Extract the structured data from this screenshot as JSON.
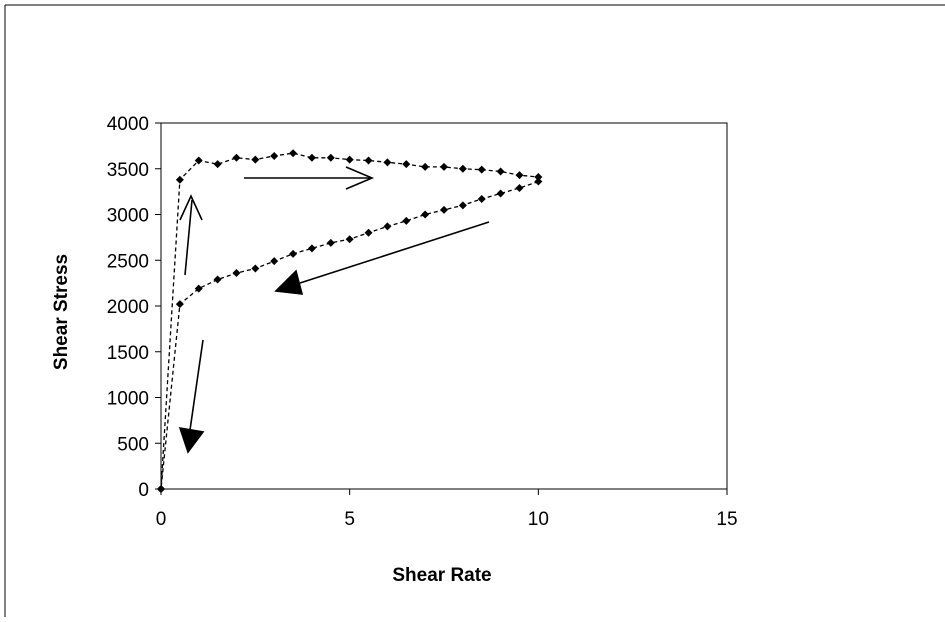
{
  "chart_data": {
    "type": "scatter",
    "title": "",
    "xlabel": "Shear Rate",
    "ylabel": "Shear Stress",
    "xlim": [
      0,
      15
    ],
    "ylim": [
      0,
      4000
    ],
    "x_ticks": [
      "0",
      "5",
      "10",
      "15"
    ],
    "y_ticks": [
      "0",
      "500",
      "1000",
      "1500",
      "2000",
      "2500",
      "3000",
      "3500",
      "4000"
    ],
    "grid": false,
    "legend": "none",
    "series": [
      {
        "values_upper": [
          [
            0,
            0
          ],
          [
            0.5,
            3380
          ],
          [
            1,
            3590
          ],
          [
            1.5,
            3550
          ],
          [
            2,
            3620
          ],
          [
            2.5,
            3600
          ],
          [
            3,
            3640
          ],
          [
            3.5,
            3670
          ],
          [
            4,
            3620
          ],
          [
            4.5,
            3620
          ],
          [
            5,
            3600
          ],
          [
            5.5,
            3590
          ],
          [
            6,
            3570
          ],
          [
            6.5,
            3550
          ],
          [
            7,
            3520
          ],
          [
            7.5,
            3520
          ],
          [
            8,
            3500
          ],
          [
            8.5,
            3490
          ],
          [
            9,
            3470
          ],
          [
            9.5,
            3430
          ],
          [
            10,
            3410
          ]
        ],
        "values_lower": [
          [
            10,
            3360
          ],
          [
            9.5,
            3290
          ],
          [
            9,
            3230
          ],
          [
            8.5,
            3170
          ],
          [
            8,
            3100
          ],
          [
            7.5,
            3050
          ],
          [
            7,
            3000
          ],
          [
            6.5,
            2930
          ],
          [
            6,
            2870
          ],
          [
            5.5,
            2800
          ],
          [
            5,
            2730
          ],
          [
            4.5,
            2690
          ],
          [
            4,
            2630
          ],
          [
            3.5,
            2570
          ],
          [
            3,
            2490
          ],
          [
            2.5,
            2410
          ],
          [
            2,
            2360
          ],
          [
            1.5,
            2290
          ],
          [
            1,
            2190
          ],
          [
            0.5,
            2020
          ],
          [
            0,
            0
          ]
        ]
      }
    ],
    "colors": {
      "marker": "#000000",
      "axis": "#000000",
      "frame": "#000000"
    }
  }
}
